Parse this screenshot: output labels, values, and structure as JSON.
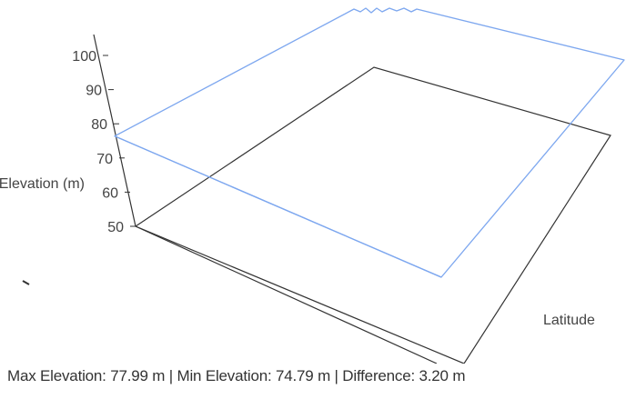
{
  "chart_data": {
    "type": "surface-3d",
    "axes": {
      "z": {
        "label": "Elevation (m)",
        "ticks": [
          50,
          60,
          70,
          80,
          90,
          100
        ],
        "range": [
          50,
          100
        ]
      },
      "y": {
        "label": "Latitude"
      }
    },
    "surface": {
      "elevation_max": 77.99,
      "elevation_min": 74.79
    },
    "grid": false,
    "colors": {
      "surface": "#7da7ef",
      "frame": "#333333",
      "text": "#444444"
    }
  },
  "stats": {
    "text": "Max Elevation: 77.99 m | Min Elevation: 74.79 m | Difference: 3.20 m"
  }
}
